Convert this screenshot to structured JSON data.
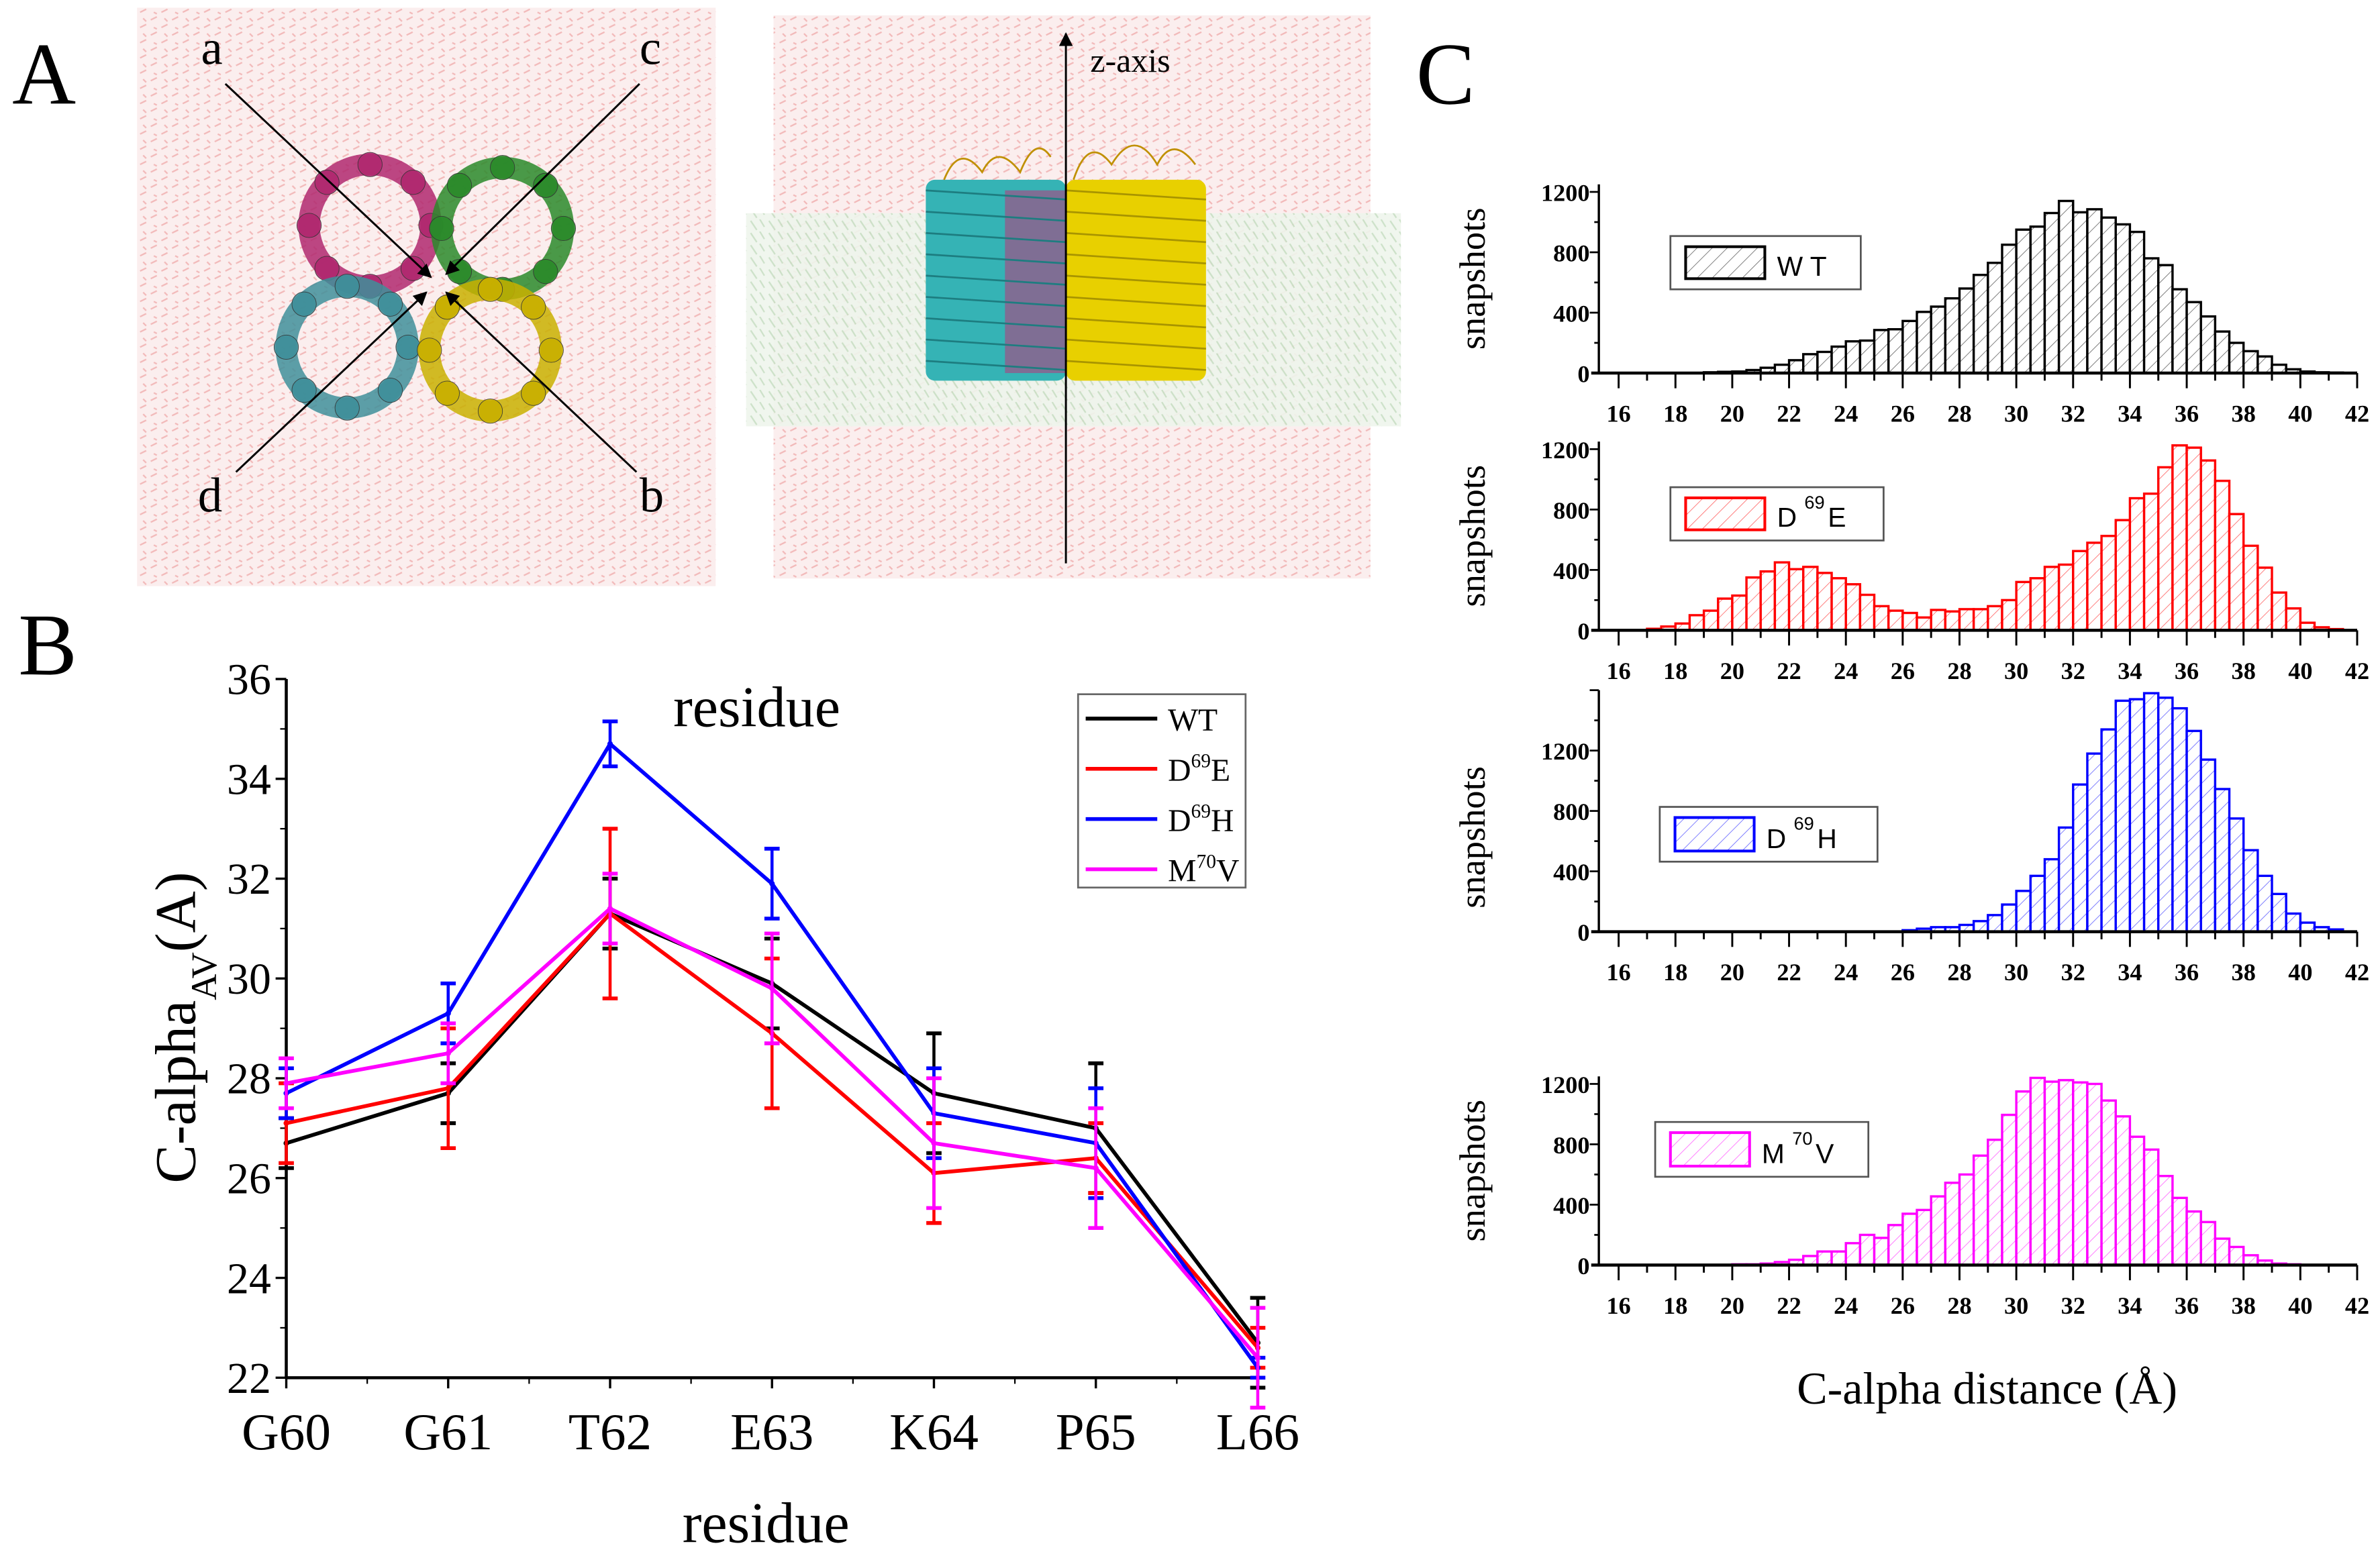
{
  "panel_labels": {
    "a": "A",
    "b": "B",
    "c": "C"
  },
  "panel_a": {
    "axis_labels": {
      "a": "a",
      "b": "b",
      "c": "c",
      "d": "d"
    },
    "z_axis_label": "z-axis",
    "chain_colors": [
      "#b0286f",
      "#2a8a2a",
      "#3f8f9a",
      "#c9b000"
    ]
  },
  "chart_data": [
    {
      "type": "line",
      "title": "residue",
      "xlabel": "residue",
      "ylabel": "C-alpha",
      "ylabel_sub": "AV",
      "ylabel_unit": "(A)",
      "categories": [
        "G60",
        "G61",
        "T62",
        "E63",
        "K64",
        "P65",
        "L66"
      ],
      "ylim": [
        22,
        36
      ],
      "yticks": [
        "22",
        "24",
        "26",
        "28",
        "30",
        "32",
        "34",
        "36"
      ],
      "legend_position": "top-right",
      "series": [
        {
          "name": "WT",
          "label": {
            "base": "WT",
            "sup": "",
            "tail": ""
          },
          "color": "#000000",
          "values": [
            26.7,
            27.7,
            31.3,
            29.9,
            27.7,
            27.0,
            22.7
          ],
          "errors": [
            0.5,
            0.6,
            0.7,
            0.9,
            1.2,
            1.3,
            0.9
          ]
        },
        {
          "name": "D69E",
          "label": {
            "base": "D",
            "sup": "69",
            "tail": "E"
          },
          "color": "#ff0000",
          "values": [
            27.1,
            27.8,
            31.3,
            28.9,
            26.1,
            26.4,
            22.6
          ],
          "errors": [
            0.8,
            1.2,
            1.7,
            1.5,
            1.0,
            0.7,
            0.4
          ]
        },
        {
          "name": "D69H",
          "label": {
            "base": "D",
            "sup": "69",
            "tail": "H"
          },
          "color": "#0000ff",
          "values": [
            27.7,
            29.3,
            34.7,
            31.9,
            27.3,
            26.7,
            22.2
          ],
          "errors": [
            0.5,
            0.6,
            0.45,
            0.7,
            0.9,
            1.1,
            0.2
          ]
        },
        {
          "name": "M70V",
          "label": {
            "base": "M",
            "sup": "70",
            "tail": "V"
          },
          "color": "#ff00ff",
          "values": [
            27.9,
            28.5,
            31.4,
            29.8,
            26.7,
            26.2,
            22.4
          ],
          "errors": [
            0.5,
            0.6,
            0.7,
            1.1,
            1.3,
            1.2,
            1.0
          ]
        }
      ]
    },
    {
      "type": "bar",
      "subtype": "histogram",
      "xlabel": "C-alpha distance (Å)",
      "ylabel": "snapshots",
      "xlim": [
        16,
        43
      ],
      "xticks": [
        "16",
        "18",
        "20",
        "22",
        "24",
        "26",
        "28",
        "30",
        "32",
        "34",
        "36",
        "38",
        "40",
        "42"
      ],
      "yticks": [
        "0",
        "400",
        "800",
        "1200"
      ],
      "bin_start": 16,
      "bin_width": 0.5,
      "panels": [
        {
          "name": "WT",
          "label": {
            "base": "W T",
            "sup": "",
            "tail": ""
          },
          "color": "#000000",
          "ylim": [
            0,
            1250
          ],
          "values": [
            0,
            0,
            0,
            0,
            0,
            0,
            5,
            8,
            10,
            20,
            35,
            55,
            85,
            125,
            140,
            175,
            210,
            215,
            285,
            290,
            345,
            405,
            440,
            495,
            560,
            650,
            730,
            850,
            950,
            970,
            1060,
            1140,
            1065,
            1085,
            1030,
            985,
            935,
            760,
            715,
            555,
            470,
            375,
            275,
            200,
            145,
            110,
            55,
            25,
            10,
            5,
            3,
            0,
            0,
            0
          ]
        },
        {
          "name": "D69E",
          "label": {
            "base": "D",
            "sup": "69",
            "tail": "E"
          },
          "color": "#ff0000",
          "ylim": [
            0,
            1250
          ],
          "values": [
            0,
            0,
            10,
            25,
            45,
            100,
            130,
            210,
            230,
            350,
            390,
            450,
            405,
            420,
            380,
            345,
            305,
            235,
            160,
            130,
            115,
            85,
            135,
            125,
            140,
            140,
            160,
            200,
            320,
            345,
            420,
            435,
            525,
            580,
            625,
            730,
            875,
            905,
            1080,
            1225,
            1210,
            1125,
            990,
            770,
            560,
            415,
            250,
            145,
            50,
            20,
            8,
            0,
            0,
            0
          ]
        },
        {
          "name": "D69H",
          "label": {
            "base": "D",
            "sup": "69",
            "tail": "H"
          },
          "color": "#0000ff",
          "ylim": [
            0,
            1600
          ],
          "values": [
            0,
            0,
            0,
            0,
            0,
            0,
            0,
            0,
            0,
            0,
            0,
            0,
            0,
            0,
            0,
            0,
            0,
            0,
            0,
            0,
            10,
            20,
            30,
            30,
            45,
            70,
            110,
            180,
            270,
            370,
            480,
            690,
            975,
            1180,
            1340,
            1530,
            1540,
            1580,
            1550,
            1480,
            1330,
            1140,
            945,
            750,
            540,
            370,
            250,
            120,
            60,
            30,
            15,
            0,
            0,
            0
          ]
        },
        {
          "name": "M70V",
          "label": {
            "base": "M",
            "sup": "70",
            "tail": "V"
          },
          "color": "#ff00ff",
          "ylim": [
            0,
            1250
          ],
          "values": [
            0,
            0,
            0,
            0,
            0,
            0,
            0,
            0,
            5,
            5,
            10,
            20,
            35,
            60,
            90,
            90,
            145,
            200,
            180,
            265,
            340,
            365,
            455,
            545,
            600,
            725,
            830,
            995,
            1150,
            1240,
            1215,
            1225,
            1210,
            1200,
            1090,
            985,
            850,
            765,
            590,
            445,
            355,
            285,
            175,
            120,
            65,
            30,
            10,
            5,
            0,
            0,
            0,
            0,
            0,
            0
          ]
        }
      ]
    }
  ]
}
